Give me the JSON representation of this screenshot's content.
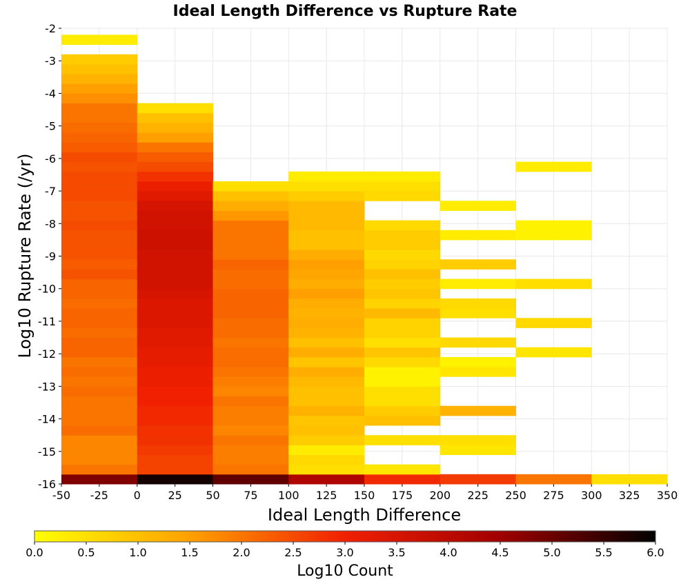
{
  "chart_data": {
    "type": "heatmap",
    "title": "Ideal Length Difference vs Rupture Rate",
    "xlabel": "Ideal Length Difference",
    "ylabel": "Log10 Rupture Rate (/yr)",
    "xlim": [
      -50,
      350
    ],
    "ylim": [
      -16,
      -2
    ],
    "x_ticks": [
      "-50",
      "-25",
      "0",
      "25",
      "50",
      "75",
      "100",
      "125",
      "150",
      "175",
      "200",
      "225",
      "250",
      "275",
      "300",
      "325",
      "350"
    ],
    "y_ticks": [
      "-2",
      "-3",
      "-4",
      "-5",
      "-6",
      "-7",
      "-8",
      "-9",
      "-10",
      "-11",
      "-12",
      "-13",
      "-14",
      "-15",
      "-16"
    ],
    "x_bin_edges": [
      -50,
      0,
      50,
      100,
      150,
      200,
      250,
      300,
      350
    ],
    "y_bin_edges_start": -16,
    "y_bin_height": 0.3,
    "grid": true,
    "colorbar": {
      "label": "Log10 Count",
      "range": [
        0,
        6
      ],
      "ticks": [
        "0.0",
        "0.5",
        "1.0",
        "1.5",
        "2.0",
        "2.5",
        "3.0",
        "3.5",
        "4.0",
        "4.5",
        "5.0",
        "5.5",
        "6.0"
      ],
      "stops": [
        "#ffff00",
        "#ffa000",
        "#f02000",
        "#a00000",
        "#000000"
      ]
    },
    "columns": [
      {
        "x": -50,
        "values": [
          4.8,
          2.0,
          1.8,
          1.8,
          1.8,
          2.1,
          2.0,
          2.0,
          2.0,
          2.1,
          2.0,
          2.1,
          2.0,
          2.2,
          2.2,
          2.1,
          2.2,
          2.2,
          2.1,
          2.2,
          2.2,
          2.4,
          2.3,
          2.4,
          2.4,
          2.4,
          2.5,
          2.4,
          2.4,
          2.5,
          2.5,
          2.5,
          2.4,
          2.5,
          2.3,
          2.2,
          2.1,
          2.0,
          2.0,
          1.7,
          1.5,
          1.2,
          1.0,
          0.8,
          null,
          0.3
        ]
      },
      {
        "x": 0,
        "values": [
          5.8,
          2.6,
          2.6,
          2.7,
          2.8,
          2.8,
          2.9,
          2.9,
          3.0,
          3.0,
          3.1,
          3.1,
          3.2,
          3.2,
          3.3,
          3.3,
          3.4,
          3.4,
          3.4,
          3.5,
          3.6,
          3.6,
          3.6,
          3.6,
          3.7,
          3.7,
          3.6,
          3.6,
          3.5,
          3.3,
          3.1,
          2.8,
          2.5,
          2.3,
          2.0,
          1.5,
          1.2,
          1.0,
          0.5
        ]
      },
      {
        "x": 50,
        "values": [
          5.1,
          2.0,
          1.9,
          1.9,
          2.0,
          1.8,
          1.9,
          1.9,
          2.0,
          1.8,
          1.9,
          2.0,
          2.1,
          2.1,
          2.0,
          2.1,
          2.1,
          2.2,
          2.2,
          2.2,
          2.1,
          2.1,
          2.2,
          2.0,
          2.0,
          2.0,
          2.0,
          1.6,
          1.3,
          1.0,
          0.5
        ]
      },
      {
        "x": 100,
        "values": [
          4.2,
          0.5,
          0.6,
          0.3,
          0.8,
          1.0,
          0.9,
          1.2,
          1.0,
          1.0,
          1.1,
          1.3,
          0.9,
          1.3,
          1.0,
          1.2,
          1.3,
          1.2,
          1.3,
          1.5,
          1.3,
          1.4,
          1.5,
          1.3,
          1.0,
          1.0,
          1.1,
          1.1,
          1.1,
          0.8,
          0.5,
          0.3
        ]
      },
      {
        "x": 150,
        "values": [
          2.9,
          0.4,
          null,
          null,
          0.5,
          null,
          1.0,
          0.8,
          0.5,
          0.5,
          0.2,
          0.2,
          0.6,
          0.9,
          0.5,
          0.7,
          0.7,
          1.1,
          0.7,
          0.9,
          0.8,
          1.0,
          0.7,
          0.6,
          0.8,
          0.8,
          0.6,
          null,
          null,
          0.6,
          0.5,
          0.3
        ]
      },
      {
        "x": 200,
        "values": [
          2.7,
          null,
          null,
          0.4,
          0.5,
          null,
          null,
          1.2,
          null,
          null,
          null,
          0.4,
          0.2,
          null,
          0.6,
          null,
          null,
          0.5,
          0.6,
          null,
          0.3,
          null,
          0.8,
          null,
          null,
          0.3,
          null,
          null,
          0.3
        ]
      },
      {
        "x": 250,
        "values": [
          2.0,
          null,
          null,
          null,
          null,
          null,
          null,
          null,
          null,
          null,
          null,
          null,
          null,
          0.4,
          null,
          null,
          0.6,
          null,
          null,
          null,
          0.5,
          null,
          null,
          null,
          null,
          0.2,
          0.2,
          null,
          null,
          null,
          null,
          null,
          0.3
        ]
      },
      {
        "x": 300,
        "values": [
          0.5
        ]
      }
    ]
  }
}
